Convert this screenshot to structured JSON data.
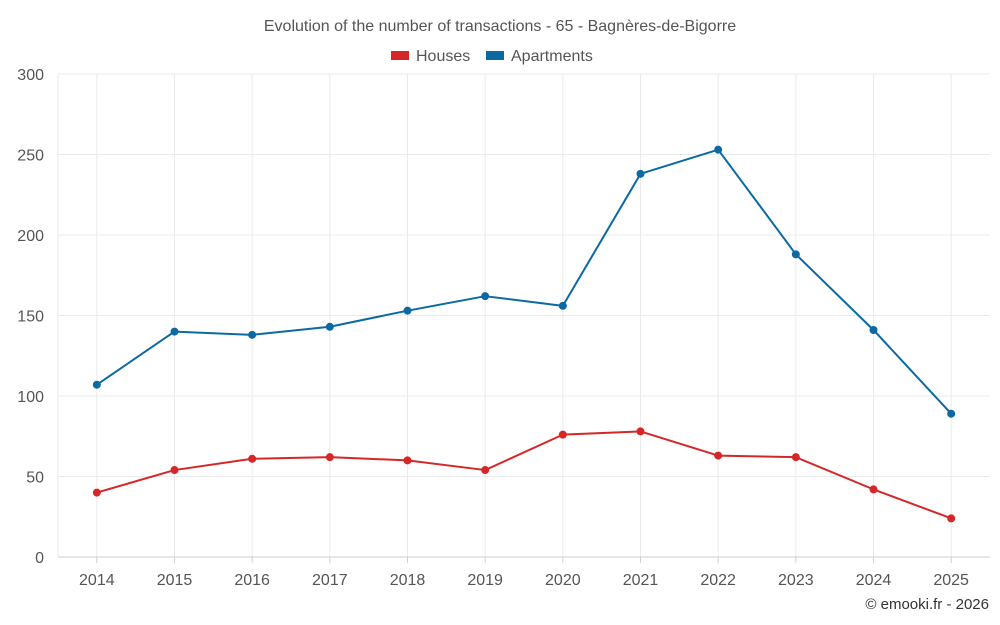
{
  "chart_data": {
    "type": "line",
    "title": "Evolution of the number of transactions - 65 - Bagnères-de-Bigorre",
    "categories": [
      "2014",
      "2015",
      "2016",
      "2017",
      "2018",
      "2019",
      "2020",
      "2021",
      "2022",
      "2023",
      "2024",
      "2025"
    ],
    "ylim": [
      0,
      300
    ],
    "yticks": [
      0,
      50,
      100,
      150,
      200,
      250,
      300
    ],
    "grid": true,
    "legend_position": "top-center",
    "series": [
      {
        "name": "Houses",
        "color": "#d62728",
        "values": [
          40,
          54,
          61,
          62,
          60,
          54,
          76,
          78,
          63,
          62,
          42,
          24
        ]
      },
      {
        "name": "Apartments",
        "color": "#0a6aa1",
        "values": [
          107,
          140,
          138,
          143,
          153,
          162,
          156,
          238,
          253,
          188,
          141,
          89
        ]
      }
    ]
  },
  "credit": "© emooki.fr - 2026"
}
